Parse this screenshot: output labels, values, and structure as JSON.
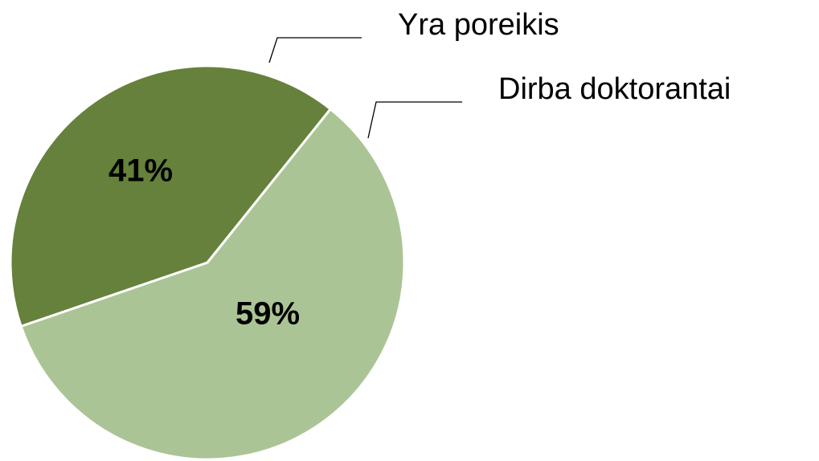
{
  "chart_data": {
    "type": "pie",
    "categories": [
      "Yra poreikis",
      "Dirba doktorantai"
    ],
    "values": [
      41,
      59
    ],
    "value_labels": [
      "41%",
      "59%"
    ],
    "colors": [
      "#65813b",
      "#abc495"
    ]
  }
}
